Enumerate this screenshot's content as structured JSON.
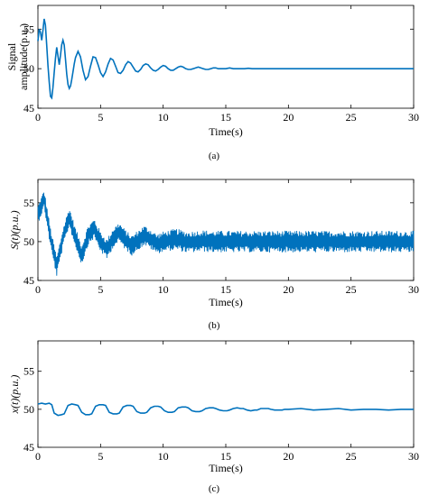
{
  "chart_data": [
    {
      "type": "line",
      "panel_label": "(a)",
      "xlabel": "Time(s)",
      "ylabel_line1": "Signal",
      "ylabel_line2": "amplitude(p.u.)",
      "xlim": [
        0,
        30
      ],
      "ylim": [
        45,
        58
      ],
      "xticks": [
        0,
        5,
        10,
        15,
        20,
        25,
        30
      ],
      "yticks": [
        45,
        50,
        55
      ],
      "grid": false,
      "series": [
        {
          "color": "#0072BD",
          "x": [
            0,
            0.1,
            0.2,
            0.3,
            0.4,
            0.5,
            0.6,
            0.7,
            0.8,
            0.9,
            1.0,
            1.1,
            1.2,
            1.3,
            1.4,
            1.5,
            1.6,
            1.7,
            1.8,
            1.9,
            2.0,
            2.1,
            2.2,
            2.3,
            2.4,
            2.5,
            2.6,
            2.7,
            2.8,
            2.9,
            3.0,
            3.2,
            3.4,
            3.6,
            3.8,
            4.0,
            4.2,
            4.4,
            4.6,
            4.8,
            5.0,
            5.2,
            5.4,
            5.6,
            5.8,
            6.0,
            6.2,
            6.4,
            6.6,
            6.8,
            7.0,
            7.2,
            7.4,
            7.6,
            7.8,
            8.0,
            8.2,
            8.4,
            8.6,
            8.8,
            9.0,
            9.2,
            9.4,
            9.6,
            9.8,
            10.0,
            10.2,
            10.4,
            10.6,
            10.8,
            11.0,
            11.2,
            11.4,
            11.6,
            11.8,
            12.0,
            12.2,
            12.4,
            12.6,
            12.8,
            13.0,
            13.2,
            13.4,
            13.6,
            13.8,
            14.0,
            14.2,
            14.4,
            14.6,
            14.8,
            15.0,
            15.3,
            15.6,
            15.9,
            16.2,
            16.5,
            16.8,
            17.1,
            17.4,
            17.7,
            18.0,
            18.3,
            18.6,
            18.9,
            19.2,
            19.5,
            19.8,
            20.1,
            20.4,
            20.7,
            21.0,
            21.5,
            22.0,
            22.5,
            23.0,
            23.5,
            24.0,
            25.0,
            26.0,
            27.0,
            28.0,
            29.0,
            30.0
          ],
          "y": [
            53.5,
            55.0,
            54.6,
            53.6,
            54.8,
            56.3,
            55.5,
            53.0,
            50.4,
            48.3,
            46.5,
            46.3,
            47.6,
            49.5,
            51.3,
            52.7,
            51.6,
            50.5,
            51.7,
            53.0,
            53.6,
            53.0,
            51.2,
            49.3,
            48.0,
            47.5,
            47.8,
            48.6,
            49.6,
            50.6,
            51.4,
            52.2,
            51.5,
            49.8,
            48.6,
            49.0,
            50.3,
            51.5,
            51.4,
            50.5,
            49.5,
            49.0,
            49.6,
            50.6,
            51.3,
            51.1,
            50.3,
            49.5,
            49.4,
            49.8,
            50.5,
            50.9,
            50.7,
            50.2,
            49.7,
            49.6,
            49.9,
            50.4,
            50.6,
            50.5,
            50.1,
            49.8,
            49.7,
            49.9,
            50.2,
            50.4,
            50.3,
            50.0,
            49.8,
            49.8,
            50.0,
            50.2,
            50.3,
            50.2,
            50.0,
            49.9,
            49.9,
            50.0,
            50.1,
            50.2,
            50.1,
            50.0,
            49.9,
            49.9,
            50.0,
            50.1,
            50.1,
            50.0,
            50.0,
            50.0,
            50.0,
            50.1,
            50.0,
            50.0,
            50.0,
            50.0,
            50.05,
            50.0,
            50.0,
            50.0,
            50.0,
            50.0,
            50.0,
            50.0,
            50.0,
            50.0,
            50.0,
            50.0,
            50.0,
            50.0,
            50.0,
            50.0,
            50.0,
            50.0,
            50.0,
            50.0,
            50.0,
            50.0,
            50.0,
            50.0,
            50.0,
            50.0,
            50.0
          ]
        }
      ]
    },
    {
      "type": "line",
      "panel_label": "(b)",
      "xlabel": "Time(s)",
      "ylabel": "S(t)(p.u.)",
      "xlim": [
        0,
        30
      ],
      "ylim": [
        45,
        58
      ],
      "xticks": [
        0,
        5,
        10,
        15,
        20,
        25,
        30
      ],
      "yticks": [
        45,
        50,
        55
      ],
      "grid": false,
      "description_signal": "oscillation similar to (a) with heavy additive noise, noise band about ±1.4 p.u. around 50 after 10 s",
      "series": [
        {
          "color": "#0072BD",
          "x": [
            0,
            0.5,
            1.0,
            1.5,
            2.0,
            2.5,
            3.0,
            3.5,
            4.0,
            4.5,
            5.0,
            5.5,
            6.0,
            6.5,
            7.0,
            7.5,
            8.0,
            8.5,
            9.0,
            9.5,
            10.0,
            11.0,
            12.0,
            13.0,
            14.0,
            15.0,
            20.0,
            25.0,
            30.0
          ],
          "y_center": [
            53.5,
            55.5,
            50.5,
            46.8,
            50.5,
            53.2,
            50.5,
            48.3,
            50.8,
            51.7,
            50.0,
            49.0,
            50.5,
            51.2,
            50.2,
            49.5,
            50.2,
            50.8,
            50.3,
            49.7,
            50.0,
            50.3,
            49.9,
            50.1,
            50.0,
            50.0,
            50.0,
            50.0,
            50.0
          ],
          "noise_amplitude": [
            1.2,
            1.2,
            1.3,
            1.3,
            1.3,
            1.3,
            1.3,
            1.3,
            1.3,
            1.3,
            1.3,
            1.3,
            1.3,
            1.3,
            1.3,
            1.3,
            1.3,
            1.3,
            1.3,
            1.3,
            1.3,
            1.4,
            1.4,
            1.4,
            1.4,
            1.4,
            1.4,
            1.4,
            1.4
          ]
        }
      ]
    },
    {
      "type": "line",
      "panel_label": "(c)",
      "xlabel": "Time(s)",
      "ylabel": "x(t)(p.u.)",
      "xlim": [
        0,
        30
      ],
      "ylim": [
        45,
        59
      ],
      "xticks": [
        0,
        5,
        10,
        15,
        20,
        25,
        30
      ],
      "yticks": [
        45,
        50,
        55
      ],
      "grid": false,
      "description_signal": "square-like oscillation near 50 with period ~2 s, amplitude decaying from ~0.8 to ~0.1 p.u.",
      "series": [
        {
          "color": "#0072BD",
          "x": [
            0,
            0.3,
            0.6,
            0.9,
            1.1,
            1.3,
            1.6,
            1.9,
            2.1,
            2.4,
            2.7,
            3.0,
            3.2,
            3.5,
            3.8,
            4.1,
            4.3,
            4.6,
            4.9,
            5.2,
            5.4,
            5.7,
            6.0,
            6.3,
            6.5,
            6.8,
            7.1,
            7.4,
            7.6,
            7.9,
            8.2,
            8.5,
            8.7,
            9.0,
            9.3,
            9.6,
            9.8,
            10.1,
            10.4,
            10.7,
            10.9,
            11.2,
            11.5,
            11.8,
            12.0,
            12.3,
            12.6,
            12.9,
            13.1,
            13.4,
            13.7,
            14.0,
            14.2,
            14.5,
            14.8,
            15.1,
            15.3,
            15.6,
            15.9,
            16.2,
            16.4,
            16.7,
            17.0,
            17.3,
            17.5,
            17.8,
            18.1,
            18.4,
            18.6,
            18.9,
            19.2,
            19.5,
            19.7,
            20.0,
            21.0,
            22.0,
            23.0,
            24.0,
            25.0,
            26.0,
            27.0,
            28.0,
            29.0,
            30.0
          ],
          "y": [
            50.7,
            50.8,
            50.7,
            50.8,
            50.6,
            49.5,
            49.2,
            49.3,
            49.4,
            50.5,
            50.7,
            50.6,
            50.5,
            49.6,
            49.3,
            49.3,
            49.4,
            50.4,
            50.6,
            50.6,
            50.5,
            49.6,
            49.4,
            49.4,
            49.5,
            50.3,
            50.5,
            50.5,
            50.4,
            49.7,
            49.5,
            49.5,
            49.6,
            50.2,
            50.4,
            50.4,
            50.3,
            49.8,
            49.6,
            49.6,
            49.7,
            50.2,
            50.3,
            50.3,
            50.2,
            49.8,
            49.7,
            49.7,
            49.8,
            50.1,
            50.2,
            50.2,
            50.1,
            49.9,
            49.8,
            49.8,
            49.9,
            50.1,
            50.2,
            50.1,
            50.1,
            49.9,
            49.8,
            49.9,
            49.9,
            50.1,
            50.1,
            50.1,
            50.0,
            49.9,
            49.9,
            49.9,
            50.0,
            50.0,
            50.1,
            49.9,
            50.0,
            50.1,
            49.9,
            50.0,
            50.0,
            49.9,
            50.0,
            50.0
          ]
        }
      ]
    }
  ]
}
